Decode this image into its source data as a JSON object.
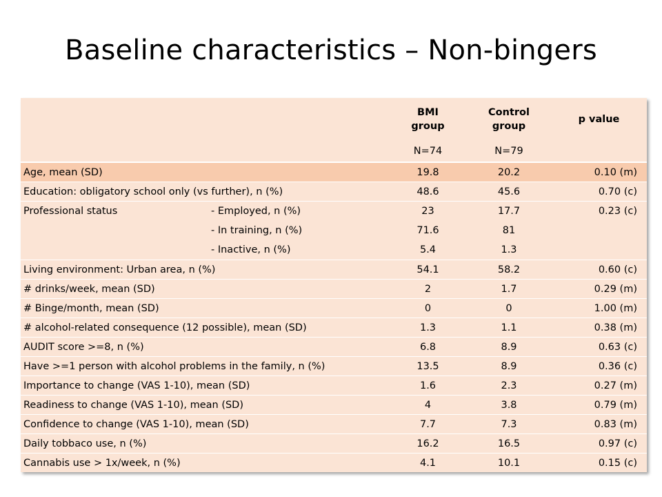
{
  "title": "Baseline characteristics – Non-bingers",
  "header": {
    "bmi_line1": "BMI",
    "bmi_line2": "group",
    "bmi_n": "N=74",
    "ctrl_line1": "Control",
    "ctrl_line2": "group",
    "ctrl_n": "N=79",
    "p": "p value"
  },
  "rows": [
    {
      "label": "Age, mean (SD)",
      "bmi": "19.8",
      "control": "20.2",
      "p": "0.10 (m)"
    },
    {
      "label": "Education: obligatory school only (vs further), n (%)",
      "bmi": "48.6",
      "control": "45.6",
      "p": "0.70 (c)"
    },
    {
      "label": "Living environment: Urban area, n (%)",
      "bmi": "54.1",
      "control": "58.2",
      "p": "0.60 (c)"
    },
    {
      "label": "# drinks/week, mean (SD)",
      "bmi": "2",
      "control": "1.7",
      "p": "0.29 (m)"
    },
    {
      "label": "# Binge/month, mean (SD)",
      "bmi": "0",
      "control": "0",
      "p": "1.00 (m)"
    },
    {
      "label": "# alcohol-related consequence (12 possible), mean (SD)",
      "bmi": "1.3",
      "control": "1.1",
      "p": "0.38 (m)"
    },
    {
      "label": "AUDIT score >=8, n (%)",
      "bmi": "6.8",
      "control": "8.9",
      "p": "0.63 (c)"
    },
    {
      "label": "Have >=1 person with alcohol problems in the family, n (%)",
      "bmi": "13.5",
      "control": "8.9",
      "p": "0.36 (c)"
    },
    {
      "label": "Importance to change (VAS 1-10), mean (SD)",
      "bmi": "1.6",
      "control": "2.3",
      "p": "0.27 (m)"
    },
    {
      "label": "Readiness to change (VAS 1-10), mean (SD)",
      "bmi": "4",
      "control": "3.8",
      "p": "0.79 (m)"
    },
    {
      "label": "Confidence to change (VAS 1-10), mean (SD)",
      "bmi": "7.7",
      "control": "7.3",
      "p": "0.83 (m)"
    },
    {
      "label": "Daily tobbaco use, n (%)",
      "bmi": "16.2",
      "control": "16.5",
      "p": "0.97 (c)"
    },
    {
      "label": "Cannabis use > 1x/week, n (%)",
      "bmi": "4.1",
      "control": "10.1",
      "p": "0.15 (c)"
    }
  ],
  "professional": {
    "label": "Professional  status",
    "p": "0.23 (c)",
    "items": [
      {
        "label": "- Employed, n (%)",
        "bmi": "23",
        "control": "17.7"
      },
      {
        "label": "- In training, n (%)",
        "bmi": "71.6",
        "control": "81"
      },
      {
        "label": "- Inactive, n (%)",
        "bmi": "5.4",
        "control": "1.3"
      }
    ]
  }
}
